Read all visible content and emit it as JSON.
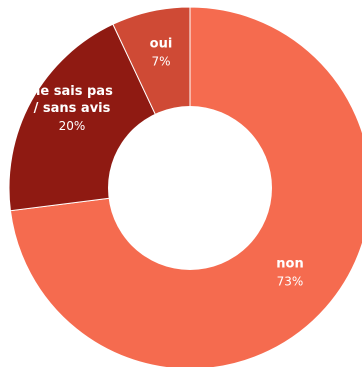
{
  "chart_data": {
    "type": "pie",
    "variant": "donut",
    "title": "",
    "slices": [
      {
        "label_lines": [
          "non"
        ],
        "value": 73,
        "value_label": "73%",
        "color": "#f56b4f"
      },
      {
        "label_lines": [
          "ne sais pas",
          "/ sans avis"
        ],
        "value": 20,
        "value_label": "20%",
        "color": "#8f1a12"
      },
      {
        "label_lines": [
          "oui"
        ],
        "value": 7,
        "value_label": "7%",
        "color": "#cf4a35"
      }
    ],
    "legend": "none"
  }
}
